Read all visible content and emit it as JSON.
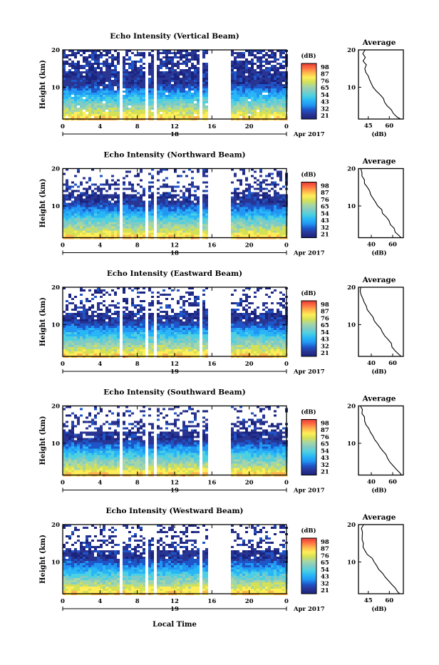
{
  "figure": {
    "month_label": "Apr 2017",
    "local_time_label": "Local Time",
    "height_label": "Height (km)",
    "colorbar_unit": "(dB)",
    "average_title": "Average",
    "average_xlabel": "(dB)"
  },
  "panels": [
    {
      "title": "Echo Intensity (Vertical Beam)",
      "date": "18",
      "avg_ticks": [
        "45",
        "60"
      ],
      "avg_range": [
        38,
        70
      ]
    },
    {
      "title": "Echo Intensity (Northward Beam)",
      "date": "18",
      "avg_ticks": [
        "40",
        "60"
      ],
      "avg_range": [
        28,
        70
      ]
    },
    {
      "title": "Echo Intensity (Eastward Beam)",
      "date": "19",
      "avg_ticks": [
        "40",
        "60"
      ],
      "avg_range": [
        28,
        70
      ]
    },
    {
      "title": "Echo Intensity (Southward Beam)",
      "date": "19",
      "avg_ticks": [
        "40",
        "60"
      ],
      "avg_range": [
        28,
        70
      ]
    },
    {
      "title": "Echo Intensity (Westward Beam)",
      "date": "19",
      "avg_ticks": [
        "45",
        "60"
      ],
      "avg_range": [
        38,
        70
      ]
    }
  ],
  "chart_data": {
    "type": "heatmap",
    "x_label": "Local Time",
    "y_label": "Height (km)",
    "x_ticks": [
      "0",
      "4",
      "8",
      "12",
      "16",
      "20",
      "0"
    ],
    "y_ticks": [
      "10",
      "20"
    ],
    "xlim": [
      0,
      24
    ],
    "ylim": [
      1.5,
      20
    ],
    "data_gaps_hours": [
      [
        6.0,
        6.3
      ],
      [
        8.6,
        8.9
      ],
      [
        9.6,
        9.9
      ],
      [
        14.6,
        14.9
      ],
      [
        15.3,
        18.0
      ]
    ],
    "colorbar": {
      "unit": "(dB)",
      "ticks": [
        "21",
        "32",
        "43",
        "54",
        "65",
        "76",
        "87",
        "98"
      ],
      "range": [
        21,
        98
      ],
      "colors": [
        "#1a237e",
        "#283593",
        "#1e55c8",
        "#2196f3",
        "#29b6f6",
        "#4dd0e1",
        "#80cbc4",
        "#a5d6a7",
        "#d4e157",
        "#ffee58",
        "#ffb74d",
        "#ff7043",
        "#e53935"
      ]
    },
    "average_profile": {
      "type": "line",
      "x_label": "(dB)",
      "y_label": "Height (km)",
      "heights_km": [
        1.5,
        2,
        3,
        4,
        5,
        6,
        7,
        8,
        9,
        10,
        11,
        12,
        13,
        14,
        15,
        16,
        17,
        18,
        19,
        20
      ],
      "series": [
        {
          "values": [
            68,
            66,
            63,
            61,
            59,
            57,
            55,
            53,
            51,
            49,
            47,
            46,
            45,
            44,
            43,
            44,
            42,
            43,
            41,
            42
          ]
        },
        {
          "values": [
            68,
            66,
            63,
            61,
            58,
            56,
            54,
            51,
            49,
            46,
            44,
            42,
            40,
            38,
            36,
            34,
            33,
            32,
            31,
            30
          ]
        },
        {
          "values": [
            68,
            66,
            63,
            60,
            58,
            56,
            53,
            51,
            48,
            46,
            43,
            41,
            39,
            37,
            35,
            33,
            32,
            31,
            30,
            30
          ]
        },
        {
          "values": [
            68,
            67,
            64,
            61,
            58,
            56,
            53,
            50,
            48,
            46,
            43,
            41,
            39,
            37,
            35,
            34,
            33,
            32,
            31,
            30
          ]
        },
        {
          "values": [
            68,
            66,
            64,
            61,
            59,
            57,
            55,
            53,
            51,
            49,
            47,
            45,
            43,
            42,
            41,
            41,
            40,
            41,
            40,
            41
          ]
        }
      ]
    }
  }
}
